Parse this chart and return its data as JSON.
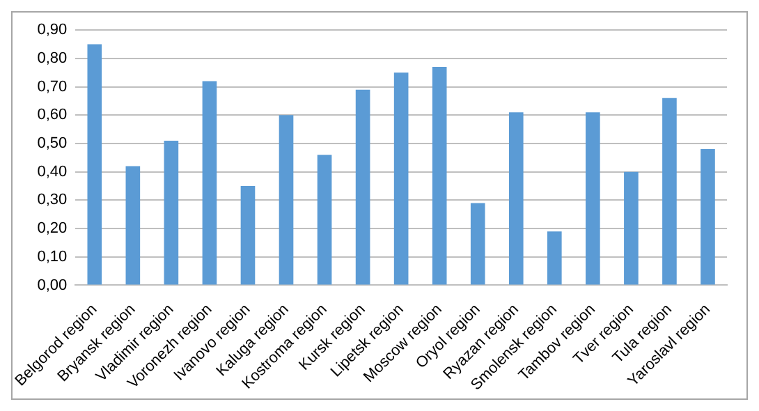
{
  "chart_data": {
    "type": "bar",
    "categories": [
      "Belgorod region",
      "Bryansk region",
      "Vladimir region",
      "Voronezh region",
      "Ivanovo region",
      "Kaluga region",
      "Kostroma region",
      "Kursk region",
      "Lipetsk region",
      "Moscow region",
      "Oryol region",
      "Ryazan region",
      "Smolensk region",
      "Tambov region",
      "Tver region",
      "Tula region",
      "Yaroslavl region"
    ],
    "values": [
      0.85,
      0.42,
      0.51,
      0.72,
      0.35,
      0.6,
      0.46,
      0.69,
      0.75,
      0.77,
      0.29,
      0.61,
      0.19,
      0.61,
      0.4,
      0.66,
      0.48
    ],
    "color": "#5b9bd5",
    "ylim": [
      0,
      0.9
    ],
    "yticks": [
      {
        "value": 0,
        "label": "0,00"
      },
      {
        "value": 0.1,
        "label": "0,10"
      },
      {
        "value": 0.2,
        "label": "0,20"
      },
      {
        "value": 0.3,
        "label": "0,30"
      },
      {
        "value": 0.4,
        "label": "0,40"
      },
      {
        "value": 0.5,
        "label": "0,50"
      },
      {
        "value": 0.6,
        "label": "0,60"
      },
      {
        "value": 0.7,
        "label": "0,70"
      },
      {
        "value": 0.8,
        "label": "0,80"
      },
      {
        "value": 0.9,
        "label": "0,90"
      }
    ],
    "grid": "y",
    "legend": false
  }
}
